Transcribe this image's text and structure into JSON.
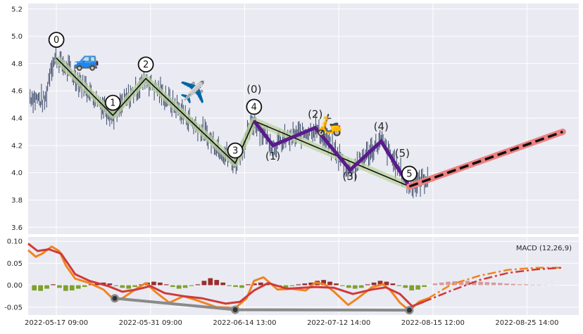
{
  "chart_data": [
    {
      "type": "candlestick-elliott-wave",
      "y_ticks": [
        3.6,
        3.8,
        4.0,
        4.2,
        4.4,
        4.6,
        4.8,
        5.0,
        5.2
      ],
      "ylim": [
        3.55,
        5.24
      ],
      "x_ticks": [
        "2022-05-17 09:00",
        "2022-05-31 09:00",
        "2022-06-14 13:00",
        "2022-07-12 14:00",
        "2022-08-15 12:00",
        "2022-08-25 14:00"
      ],
      "x_tick_positions": [
        0,
        10,
        20,
        30,
        40,
        50
      ],
      "xlim": [
        -3.0,
        55.5
      ],
      "wave_points": [
        {
          "label": "0",
          "x": 0.0,
          "y": 4.84
        },
        {
          "label": "1",
          "x": 6.0,
          "y": 4.42
        },
        {
          "label": "2",
          "x": 9.5,
          "y": 4.69
        },
        {
          "label": "3",
          "x": 19.0,
          "y": 4.07
        },
        {
          "label": "4",
          "x": 21.0,
          "y": 4.38
        },
        {
          "label": "5",
          "x": 37.5,
          "y": 3.9
        }
      ],
      "subwave_points": [
        {
          "label": "(0)",
          "x": 21.0,
          "y": 4.38
        },
        {
          "label": "(1)",
          "x": 23.0,
          "y": 4.2
        },
        {
          "label": "(2)",
          "x": 27.5,
          "y": 4.33
        },
        {
          "label": "(3)",
          "x": 31.2,
          "y": 4.02
        },
        {
          "label": "(4)",
          "x": 34.5,
          "y": 4.23
        },
        {
          "label": "(5)",
          "x": 37.5,
          "y": 3.9
        }
      ],
      "forecast": {
        "start": [
          37.5,
          3.9
        ],
        "end": [
          53.8,
          4.3
        ]
      },
      "emoji_markers": [
        {
          "icon": "🚙",
          "x": 3.2,
          "y": 4.83
        },
        {
          "icon": "✈️",
          "x": 14.5,
          "y": 4.59
        },
        {
          "icon": "🛵",
          "x": 29.0,
          "y": 4.35
        }
      ]
    },
    {
      "type": "macd",
      "label": "MACD (12,26,9)",
      "y_ticks": [
        -0.05,
        0.0,
        0.05,
        0.1
      ],
      "ylim": [
        -0.068,
        0.11
      ],
      "macd_line": [
        [
          -3,
          0.08
        ],
        [
          -2.2,
          0.065
        ],
        [
          -1.5,
          0.072
        ],
        [
          -0.5,
          0.088
        ],
        [
          0.3,
          0.078
        ],
        [
          1.0,
          0.045
        ],
        [
          2.0,
          0.015
        ],
        [
          3.5,
          0.005
        ],
        [
          5.0,
          -0.01
        ],
        [
          6.2,
          -0.035
        ],
        [
          7.0,
          -0.03
        ],
        [
          8.5,
          -0.008
        ],
        [
          9.5,
          0.005
        ],
        [
          10.5,
          -0.015
        ],
        [
          12.0,
          -0.04
        ],
        [
          13.5,
          -0.025
        ],
        [
          15.0,
          -0.035
        ],
        [
          17.0,
          -0.05
        ],
        [
          19.0,
          -0.052
        ],
        [
          20.2,
          -0.03
        ],
        [
          21.0,
          0.01
        ],
        [
          22.0,
          0.018
        ],
        [
          23.5,
          -0.01
        ],
        [
          25.0,
          -0.008
        ],
        [
          26.5,
          -0.012
        ],
        [
          27.5,
          0.006
        ],
        [
          28.5,
          0.002
        ],
        [
          29.5,
          -0.015
        ],
        [
          31.0,
          -0.045
        ],
        [
          32.0,
          -0.03
        ],
        [
          33.5,
          -0.005
        ],
        [
          34.7,
          0.002
        ],
        [
          35.5,
          -0.012
        ],
        [
          36.5,
          -0.04
        ],
        [
          37.5,
          -0.058
        ],
        [
          38.5,
          -0.038
        ],
        [
          39.5,
          -0.03
        ]
      ],
      "signal_line": [
        [
          -3,
          0.095
        ],
        [
          -2.0,
          0.078
        ],
        [
          -0.8,
          0.082
        ],
        [
          0.5,
          0.072
        ],
        [
          2.0,
          0.025
        ],
        [
          3.5,
          0.01
        ],
        [
          5.5,
          -0.002
        ],
        [
          7.0,
          -0.015
        ],
        [
          8.5,
          -0.01
        ],
        [
          10.0,
          -0.002
        ],
        [
          11.5,
          -0.018
        ],
        [
          13.5,
          -0.025
        ],
        [
          15.5,
          -0.03
        ],
        [
          18.0,
          -0.042
        ],
        [
          19.5,
          -0.038
        ],
        [
          21.0,
          -0.012
        ],
        [
          22.5,
          0.005
        ],
        [
          24.5,
          -0.008
        ],
        [
          27.5,
          -0.004
        ],
        [
          29.5,
          -0.006
        ],
        [
          31.5,
          -0.02
        ],
        [
          33.5,
          -0.01
        ],
        [
          35.0,
          -0.005
        ],
        [
          36.5,
          -0.02
        ],
        [
          37.8,
          -0.048
        ],
        [
          39.0,
          -0.038
        ]
      ],
      "macd_forecast": [
        [
          39.5,
          -0.03
        ],
        [
          42.0,
          0.002
        ],
        [
          45.0,
          0.022
        ],
        [
          48.0,
          0.035
        ],
        [
          51.0,
          0.04
        ],
        [
          53.8,
          0.04
        ]
      ],
      "signal_forecast": [
        [
          39.0,
          -0.038
        ],
        [
          42.0,
          -0.012
        ],
        [
          45.0,
          0.012
        ],
        [
          48.0,
          0.028
        ],
        [
          51.0,
          0.036
        ],
        [
          53.8,
          0.04
        ]
      ],
      "divergence_line": [
        [
          6.2,
          -0.03
        ],
        [
          19.0,
          -0.056
        ],
        [
          37.5,
          -0.057
        ]
      ],
      "histogram": [
        -0.012,
        -0.013,
        -0.008,
        0.002,
        -0.006,
        -0.013,
        -0.012,
        -0.008,
        -0.004,
        0.002,
        0.004,
        0.006,
        0.004,
        -0.002,
        -0.006,
        -0.008,
        -0.004,
        0.002,
        0.006,
        0.008,
        0.006,
        0.002,
        -0.004,
        -0.008,
        -0.006,
        -0.002,
        0.002,
        0.01,
        0.016,
        0.012,
        0.006,
        -0.002,
        -0.004,
        -0.006,
        0.002,
        0.004,
        0.006,
        0.004,
        0.002,
        -0.004,
        -0.006,
        -0.002,
        0.002,
        0.004,
        0.006,
        0.01,
        0.012,
        0.008,
        0.004,
        -0.002,
        -0.006,
        -0.008,
        -0.006,
        0.002,
        0.006,
        0.01,
        0.008,
        0.004,
        -0.002,
        -0.006,
        -0.012,
        -0.01,
        -0.004
      ],
      "histogram_forecast": [
        0.004,
        0.006,
        0.008,
        0.009,
        0.01,
        0.01,
        0.009,
        0.008,
        0.007,
        0.006,
        0.005,
        0.004,
        0.003,
        0.002,
        0.002,
        0.001,
        0.001,
        0.0005,
        0.0003,
        0.0001
      ]
    }
  ],
  "colors": {
    "panel_bg": "#eaeaf2",
    "candle": "#3b4a68",
    "main_wave": "#111111",
    "main_wave_halo": "#bcd3a0",
    "subwave": "#5a1a8c",
    "forecast": "#111111",
    "forecast_halo": "#f08080",
    "macd": "#f0841e",
    "signal": "#cf3a3a",
    "hist_pos": "#9b2d2d",
    "hist_neg": "#7fa02d",
    "hist_forecast": "#d49a9a",
    "divergence": "#8a8a8a"
  }
}
